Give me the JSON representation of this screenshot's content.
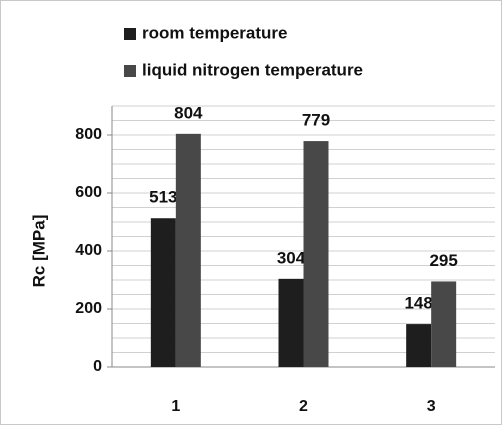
{
  "chart_data": {
    "type": "bar",
    "y_label": "Rc [MPa]",
    "categories": [
      "1",
      "2",
      "3"
    ],
    "series": [
      {
        "name": "room temperature",
        "color": "#1e1e1e",
        "values": [
          513,
          304,
          148
        ]
      },
      {
        "name": "liquid nitrogen temperature",
        "color": "#484848",
        "values": [
          804,
          779,
          295
        ]
      }
    ],
    "ylim": [
      0,
      900
    ],
    "yticks": [
      0,
      200,
      400,
      600,
      800
    ],
    "grid": true,
    "grid_step": 50,
    "legend": "top-left"
  }
}
